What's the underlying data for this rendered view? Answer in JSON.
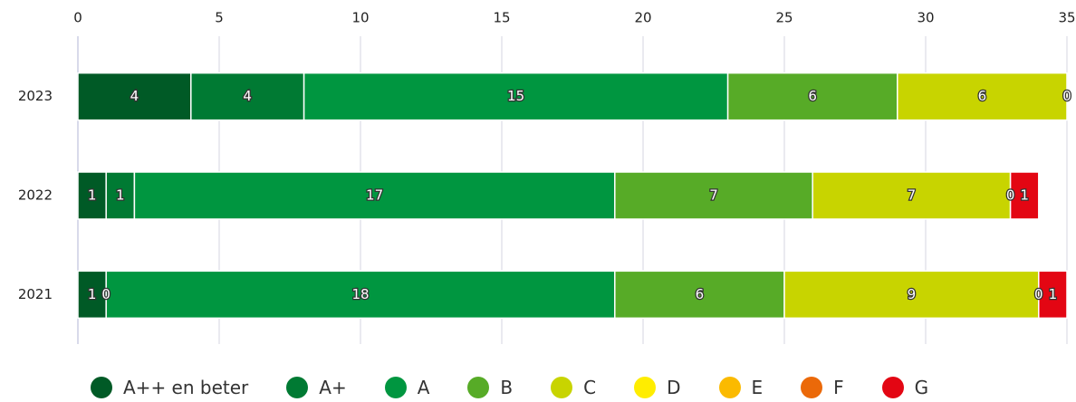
{
  "chart_data": {
    "type": "stacked-horizontal-bar",
    "categories": [
      "2023",
      "2022",
      "2021"
    ],
    "series": [
      {
        "name": "A++ en beter",
        "color": "#005a26",
        "values": [
          4,
          1,
          1
        ]
      },
      {
        "name": "A+",
        "color": "#007a33",
        "values": [
          4,
          1,
          0
        ]
      },
      {
        "name": "A",
        "color": "#009640",
        "values": [
          15,
          17,
          18
        ]
      },
      {
        "name": "B",
        "color": "#57ab27",
        "values": [
          6,
          7,
          6
        ]
      },
      {
        "name": "C",
        "color": "#c8d400",
        "values": [
          6,
          7,
          9
        ]
      },
      {
        "name": "D",
        "color": "#ffed00",
        "values": [
          0,
          0,
          0
        ]
      },
      {
        "name": "E",
        "color": "#fbba00",
        "values": [
          null,
          null,
          null
        ]
      },
      {
        "name": "F",
        "color": "#eb6909",
        "values": [
          null,
          null,
          null
        ]
      },
      {
        "name": "G",
        "color": "#e30613",
        "values": [
          null,
          1,
          1
        ]
      }
    ],
    "xlim": [
      0,
      35
    ],
    "xticks": [
      0,
      5,
      10,
      15,
      20,
      25,
      30,
      35
    ],
    "grid": true,
    "legend": "bottom"
  }
}
